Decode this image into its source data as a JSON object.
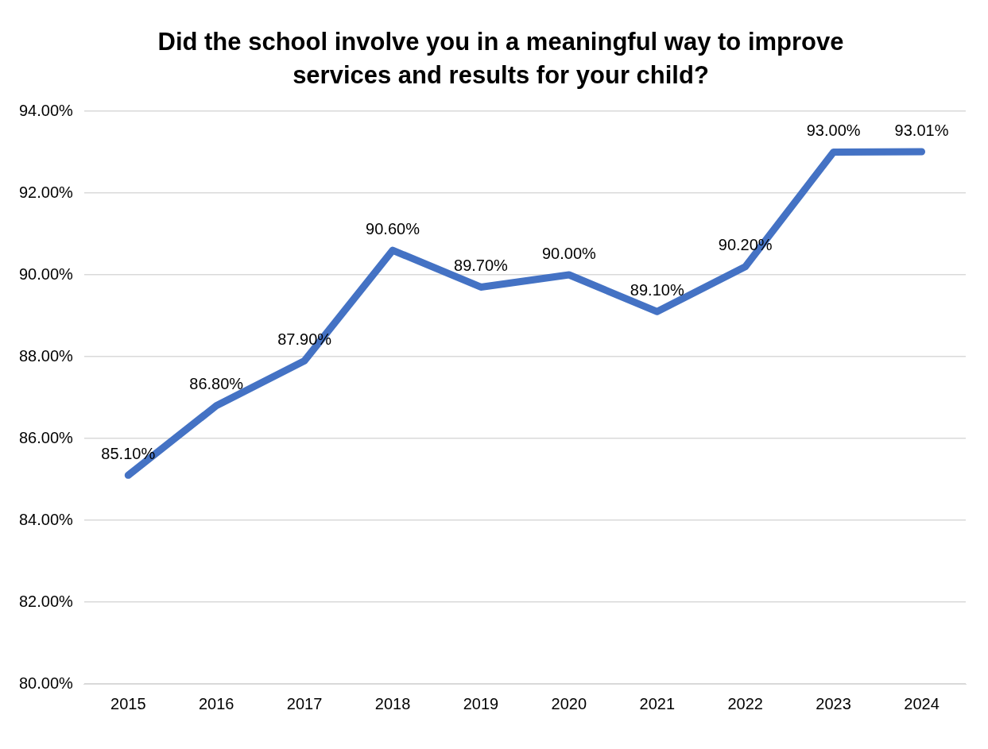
{
  "chart_data": {
    "type": "line",
    "title": "Did the school involve you in a meaningful way to improve services and results for your child?",
    "categories": [
      "2015",
      "2016",
      "2017",
      "2018",
      "2019",
      "2020",
      "2021",
      "2022",
      "2023",
      "2024"
    ],
    "series": [
      {
        "color": "#4472c4",
        "values": [
          85.1,
          86.8,
          87.9,
          90.6,
          89.7,
          90.0,
          89.1,
          90.2,
          93.0,
          93.01
        ],
        "value_labels": [
          "85.10%",
          "86.80%",
          "87.90%",
          "90.60%",
          "89.70%",
          "90.00%",
          "89.10%",
          "90.20%",
          "93.00%",
          "93.01%"
        ]
      }
    ],
    "ylim": [
      80,
      94
    ],
    "yticks": [
      {
        "value": 80,
        "label": "80.00%"
      },
      {
        "value": 82,
        "label": "82.00%"
      },
      {
        "value": 84,
        "label": "84.00%"
      },
      {
        "value": 86,
        "label": "86.00%"
      },
      {
        "value": 88,
        "label": "88.00%"
      },
      {
        "value": 90,
        "label": "90.00%"
      },
      {
        "value": 92,
        "label": "92.00%"
      },
      {
        "value": 94,
        "label": "94.00%"
      }
    ],
    "grid": "y",
    "legend": false,
    "marker": "none",
    "line_style": "solid"
  }
}
